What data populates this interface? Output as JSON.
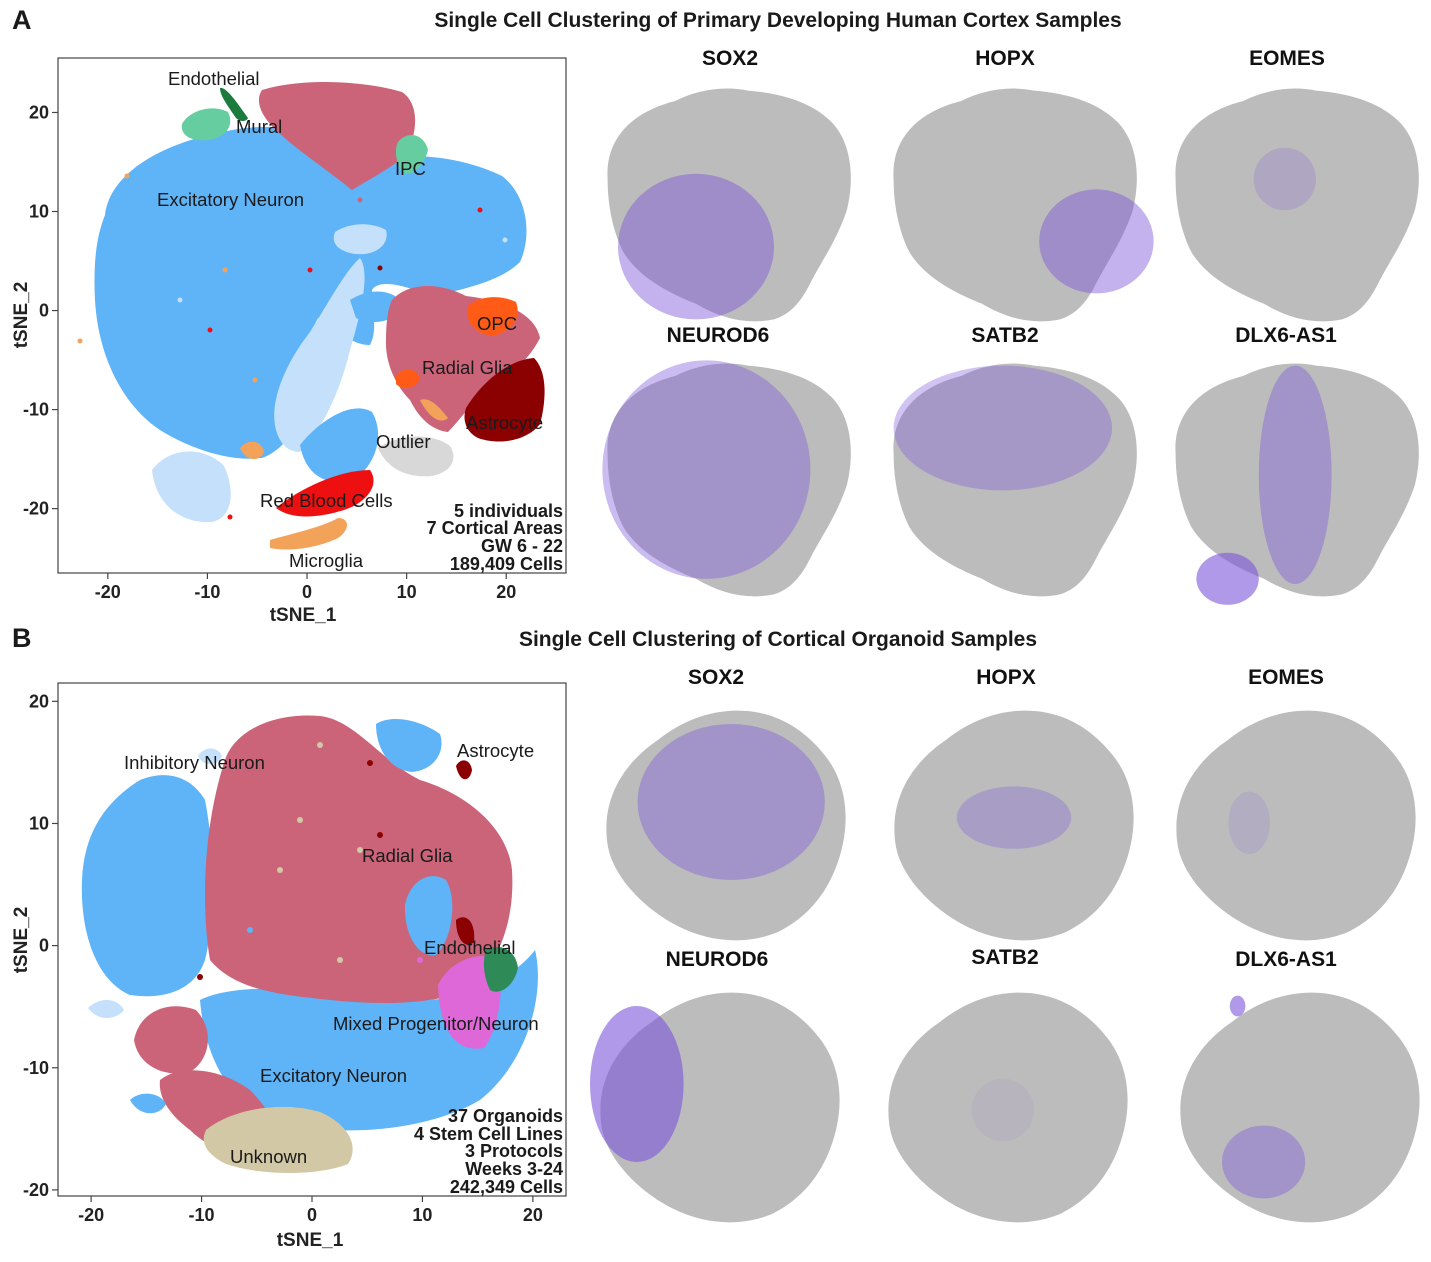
{
  "colors": {
    "excitatory": "#5fb3f7",
    "excitatory_light": "#c4e0fb",
    "radial_glia": "#cc6479",
    "astrocyte": "#8b0000",
    "opc": "#ff5b17",
    "red_blood": "#ee1010",
    "microglia": "#f3a25a",
    "endothelial_primary": "#1c7a3c",
    "mural": "#66cda0",
    "outlier": "#d8d8d8",
    "unknown": "#d2c8a6",
    "mixed": "#de68d8",
    "endothelial_organoid": "#2e8b57",
    "inhibitory": "#c4e0fb",
    "feature_gray": "#bcbcbc",
    "feature_purple": "#7b55d9"
  },
  "panel_a": {
    "label": "A",
    "title": "Single Cell Clustering of Primary Developing Human Cortex Samples",
    "tsne": {
      "x_axis_label": "tSNE_1",
      "y_axis_label": "tSNE_2",
      "clusters": [
        {
          "name": "Endothelial",
          "color": "endothelial_primary"
        },
        {
          "name": "Mural",
          "color": "mural"
        },
        {
          "name": "IPC",
          "color": "mural"
        },
        {
          "name": "Excitatory Neuron",
          "color": "excitatory"
        },
        {
          "name": "OPC",
          "color": "opc"
        },
        {
          "name": "Radial Glia",
          "color": "radial_glia"
        },
        {
          "name": "Astrocyte",
          "color": "astrocyte"
        },
        {
          "name": "Outlier",
          "color": "outlier"
        },
        {
          "name": "Red Blood Cells",
          "color": "red_blood"
        },
        {
          "name": "Microglia",
          "color": "microglia"
        }
      ],
      "info_lines": [
        "5 individuals",
        "7 Cortical Areas",
        "GW 6 - 22",
        "189,409 Cells"
      ]
    },
    "feature_plots": [
      "SOX2",
      "HOPX",
      "EOMES",
      "NEUROD6",
      "SATB2",
      "DLX6-AS1"
    ]
  },
  "panel_b": {
    "label": "B",
    "title": "Single Cell Clustering of Cortical Organoid Samples",
    "tsne": {
      "x_axis_label": "tSNE_1",
      "y_axis_label": "tSNE_2",
      "clusters": [
        {
          "name": "Inhibitory Neuron",
          "color": "inhibitory"
        },
        {
          "name": "Astrocyte",
          "color": "astrocyte"
        },
        {
          "name": "Radial Glia",
          "color": "radial_glia"
        },
        {
          "name": "Endothelial",
          "color": "endothelial_organoid"
        },
        {
          "name": "Mixed Progenitor/Neuron",
          "color": "mixed"
        },
        {
          "name": "Excitatory Neuron",
          "color": "excitatory"
        },
        {
          "name": "Unknown",
          "color": "unknown"
        }
      ],
      "info_lines": [
        "37 Organoids",
        "4 Stem Cell Lines",
        "3 Protocols",
        "Weeks 3-24",
        "242,349 Cells"
      ]
    },
    "feature_plots": [
      "SOX2",
      "HOPX",
      "EOMES",
      "NEUROD6",
      "SATB2",
      "DLX6-AS1"
    ]
  },
  "chart_data": [
    {
      "type": "scatter",
      "title": "Single Cell Clustering of Primary Developing Human Cortex Samples",
      "xlabel": "tSNE_1",
      "ylabel": "tSNE_2",
      "xlim": [
        -25,
        26
      ],
      "ylim": [
        -26.5,
        25.5
      ],
      "xticks": [
        -20,
        -10,
        0,
        10,
        20
      ],
      "yticks": [
        -20,
        -10,
        0,
        10,
        20
      ],
      "xtick_labels": [
        "-20",
        "-10",
        "0",
        "10",
        "20"
      ],
      "ytick_labels": [
        "-20",
        "-10",
        "0",
        "10",
        "20"
      ],
      "series": [
        {
          "name": "Excitatory Neuron",
          "centroid": [
            -6.5,
            5.0
          ]
        },
        {
          "name": "Radial Glia",
          "centroid": [
            14.0,
            -3.5
          ]
        },
        {
          "name": "Astrocyte",
          "centroid": [
            20.0,
            -10.0
          ]
        },
        {
          "name": "OPC",
          "centroid": [
            19.5,
            -1.0
          ]
        },
        {
          "name": "IPC",
          "centroid": [
            11.0,
            14.5
          ]
        },
        {
          "name": "Endothelial",
          "centroid": [
            -8.0,
            21.0
          ]
        },
        {
          "name": "Mural",
          "centroid": [
            -11.0,
            19.5
          ]
        },
        {
          "name": "Outlier",
          "centroid": [
            13.0,
            -14.0
          ]
        },
        {
          "name": "Red Blood Cells",
          "centroid": [
            3.0,
            -18.0
          ]
        },
        {
          "name": "Microglia",
          "centroid": [
            3.0,
            -23.0
          ]
        }
      ]
    },
    {
      "type": "scatter",
      "title": "Single Cell Clustering of Cortical Organoid Samples",
      "xlabel": "tSNE_1",
      "ylabel": "tSNE_2",
      "xlim": [
        -23,
        23
      ],
      "ylim": [
        -20.5,
        21.5
      ],
      "xticks": [
        -20,
        -10,
        0,
        10,
        20
      ],
      "yticks": [
        -20,
        -10,
        0,
        10,
        20
      ],
      "xtick_labels": [
        "-20",
        "-10",
        "0",
        "10",
        "20"
      ],
      "ytick_labels": [
        "-20",
        "-10",
        "0",
        "10",
        "20"
      ],
      "series": [
        {
          "name": "Radial Glia",
          "centroid": [
            2.0,
            6.0
          ]
        },
        {
          "name": "Excitatory Neuron",
          "centroid": [
            -13.5,
            0.5
          ]
        },
        {
          "name": "Inhibitory Neuron",
          "centroid": [
            -9.5,
            16.0
          ]
        },
        {
          "name": "Astrocyte",
          "centroid": [
            13.5,
            14.5
          ]
        },
        {
          "name": "Endothelial",
          "centroid": [
            16.5,
            -2.0
          ]
        },
        {
          "name": "Mixed Progenitor/Neuron",
          "centroid": [
            14.0,
            -7.5
          ]
        },
        {
          "name": "Unknown",
          "centroid": [
            -5.0,
            -17.0
          ]
        }
      ]
    }
  ]
}
